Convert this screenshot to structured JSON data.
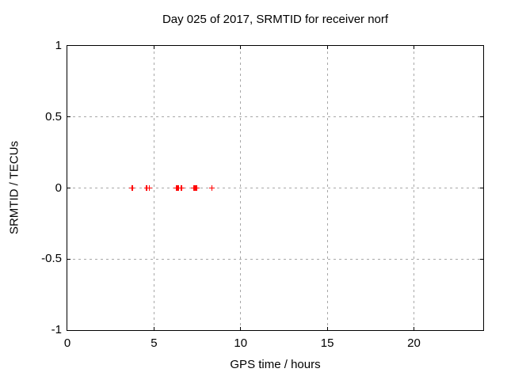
{
  "chart_data": {
    "type": "scatter",
    "title": "Day 025 of 2017, SRMTID for receiver norf",
    "xlabel": "GPS time / hours",
    "ylabel": "SRMTID / TECUs",
    "xlim": [
      0,
      24
    ],
    "ylim": [
      -1,
      1
    ],
    "xticks": [
      {
        "v": 0,
        "label": "0"
      },
      {
        "v": 5,
        "label": "5"
      },
      {
        "v": 10,
        "label": "10"
      },
      {
        "v": 15,
        "label": "15"
      },
      {
        "v": 20,
        "label": "20"
      }
    ],
    "yticks": [
      {
        "v": 1,
        "label": "1"
      },
      {
        "v": 0.5,
        "label": "0.5"
      },
      {
        "v": 0,
        "label": "0"
      },
      {
        "v": -0.5,
        "label": "-0.5"
      },
      {
        "v": -1,
        "label": "-1"
      }
    ],
    "grid": true,
    "legend": false,
    "marker": "plus",
    "series": [
      {
        "name": "SRMTID",
        "color": "#ff0000",
        "x": [
          3.74,
          4.58,
          4.72,
          6.3,
          6.37,
          6.43,
          6.59,
          7.3,
          7.37,
          7.44,
          7.48,
          8.34
        ],
        "y": [
          0,
          0,
          0,
          0,
          0,
          0,
          0,
          0,
          0,
          0,
          0,
          0
        ]
      }
    ],
    "colors": {
      "background": "#ffffff",
      "border": "#000000",
      "grid": "#a8a8a8",
      "text": "#000000",
      "marker": "#ff0000"
    }
  }
}
